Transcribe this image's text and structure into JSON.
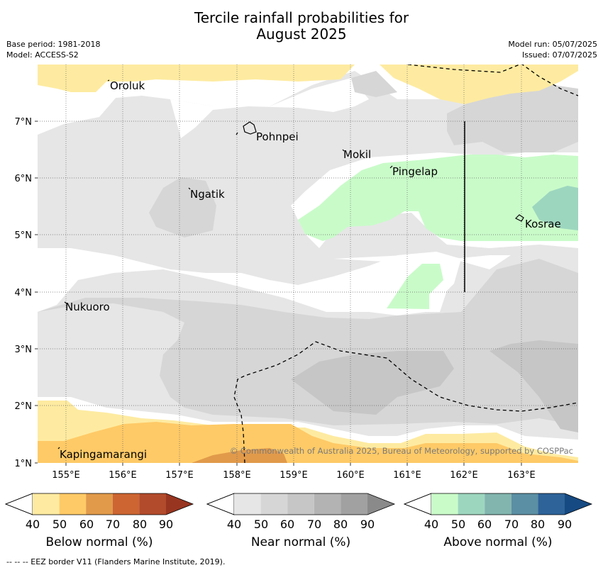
{
  "title": {
    "line1": "Tercile rainfall probabilities for",
    "line2": "August 2025"
  },
  "meta": {
    "base_period": "Base period: 1981-2018",
    "model": "Model: ACCESS-S2",
    "model_run": "Model run: 05/07/2025",
    "issued": "Issued: 07/07/2025"
  },
  "map": {
    "lat_labels": [
      "7°N",
      "6°N",
      "5°N",
      "4°N",
      "3°N",
      "2°N",
      "1°N"
    ],
    "lon_labels": [
      "155°E",
      "156°E",
      "157°E",
      "158°E",
      "159°E",
      "160°E",
      "161°E",
      "162°E",
      "163°E"
    ],
    "places": [
      {
        "name": "Oroluk"
      },
      {
        "name": "Pohnpei"
      },
      {
        "name": "Mokil"
      },
      {
        "name": "Pingelap"
      },
      {
        "name": "Ngatik"
      },
      {
        "name": "Kosrae"
      },
      {
        "name": "Nukuoro"
      },
      {
        "name": "Kapingamarangi"
      }
    ],
    "copyright": "© Commonwealth of Australia 2025, Bureau of Meteorology, supported by COSPPac"
  },
  "legend": {
    "below": {
      "label": "Below normal (%)",
      "ticks": [
        "40",
        "50",
        "60",
        "70",
        "80",
        "90"
      ],
      "colors": [
        "#ffffff",
        "#feeba1",
        "#feca67",
        "#e19a4a",
        "#cc6532",
        "#b24b2b",
        "#983520"
      ]
    },
    "near": {
      "label": "Near normal (%)",
      "ticks": [
        "40",
        "50",
        "60",
        "70",
        "80",
        "90"
      ],
      "colors": [
        "#ffffff",
        "#e6e6e6",
        "#d6d6d6",
        "#c6c6c6",
        "#b3b3b3",
        "#a1a1a1",
        "#8a8a8a"
      ]
    },
    "above": {
      "label": "Above normal (%)",
      "ticks": [
        "40",
        "50",
        "60",
        "70",
        "80",
        "90"
      ],
      "colors": [
        "#ffffff",
        "#c9fbc9",
        "#9dd6bf",
        "#81b5ad",
        "#5b8fa3",
        "#2e6399",
        "#164a82"
      ]
    }
  },
  "footnote": "-- -- -- EEZ border V11 (Flanders Marine Institute, 2019)."
}
